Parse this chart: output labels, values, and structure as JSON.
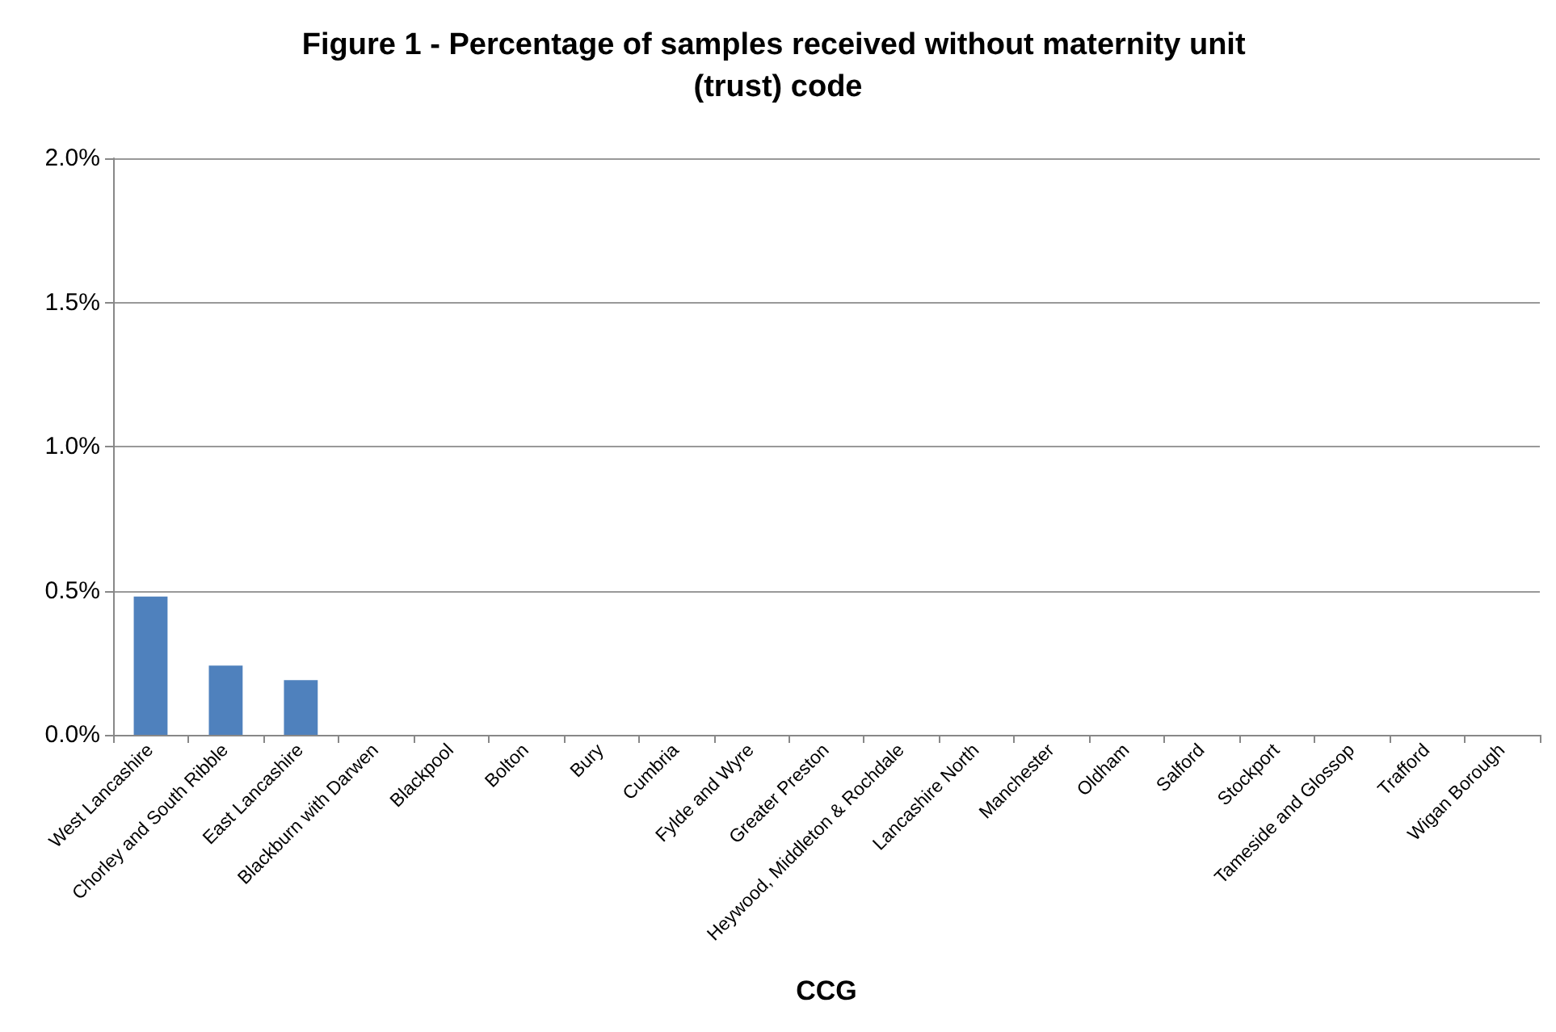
{
  "chart_data": {
    "type": "bar",
    "title": "Figure 1 - Percentage of samples received without maternity unit (trust) code",
    "xlabel": "CCG",
    "categories": [
      "West Lancashire",
      "Chorley and South Ribble",
      "East Lancashire",
      "Blackburn with Darwen",
      "Blackpool",
      "Bolton",
      "Bury",
      "Cumbria",
      "Fylde and Wyre",
      "Greater Preston",
      "Heywood, Middleton & Rochdale",
      "Lancashire North",
      "Manchester",
      "Oldham",
      "Salford",
      "Stockport",
      "Tameside and Glossop",
      "Trafford",
      "Wigan Borough"
    ],
    "values": [
      0.48,
      0.24,
      0.19,
      0,
      0,
      0,
      0,
      0,
      0,
      0,
      0,
      0,
      0,
      0,
      0,
      0,
      0,
      0,
      0
    ],
    "color": "#4f81bd",
    "ylim": [
      0,
      2
    ],
    "yticks": [
      {
        "value": 0,
        "label": "0.0%"
      },
      {
        "value": 0.5,
        "label": "0.5%"
      },
      {
        "value": 1,
        "label": "1.0%"
      },
      {
        "value": 1.5,
        "label": "1.5%"
      },
      {
        "value": 2,
        "label": "2.0%"
      }
    ],
    "grid": "y"
  }
}
